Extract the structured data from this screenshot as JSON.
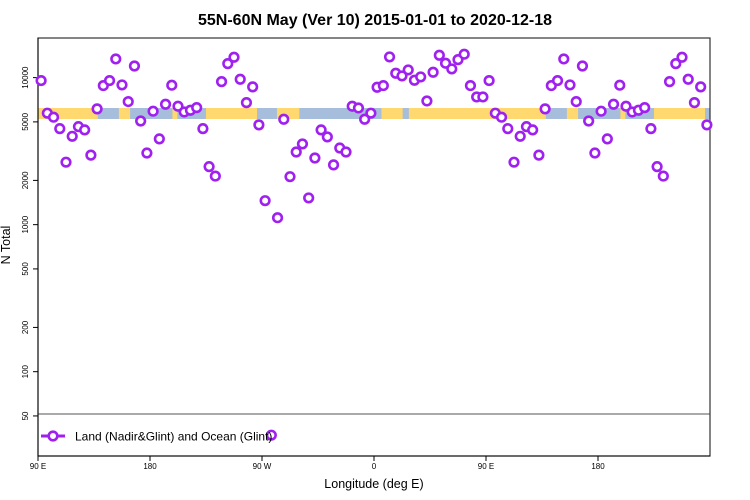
{
  "chart_data": {
    "type": "scatter",
    "title": "55N-60N May (Ver 10)   2015-01-01 to 2020-12-18",
    "xlabel": "Longitude (deg E)",
    "ylabel": "N Total",
    "y_scale": "log",
    "ylim": [
      26.7,
      18600
    ],
    "x_range_description_lon": [
      90,
      180
    ],
    "x_ticks": [
      {
        "lon": 90,
        "label": "90 E"
      },
      {
        "lon": 180,
        "label": "180"
      },
      {
        "lon": -90,
        "label": "90 W"
      },
      {
        "lon": 0,
        "label": "0"
      },
      {
        "lon": 90,
        "label": "90 E"
      },
      {
        "lon": 180,
        "label": "180"
      }
    ],
    "y_ticks": [
      50,
      100,
      200,
      500,
      1000,
      2000,
      5000,
      10000
    ],
    "y_tick_labels": [
      "50",
      "100",
      "200",
      "500",
      "1000",
      "2000",
      "5000",
      "10000"
    ],
    "reference_line_y": 50,
    "grid": false,
    "legend": {
      "position": "bottom-left",
      "label": "Land (Nadir&Glint) and Ocean (Glint)"
    },
    "colors": {
      "series": "#A020F0",
      "land": "#FFD86F",
      "ocean": "#A6BDDB"
    },
    "series": [
      {
        "name": "Land (Nadir&Glint) and Ocean (Glint)",
        "points": [
          {
            "lon": 92.5,
            "n": 9550
          },
          {
            "lon": 97.5,
            "n": 5730
          },
          {
            "lon": 102.5,
            "n": 5380
          },
          {
            "lon": 107.5,
            "n": 4500
          },
          {
            "lon": 112.5,
            "n": 2660
          },
          {
            "lon": 117.5,
            "n": 3990
          },
          {
            "lon": 122.5,
            "n": 4640
          },
          {
            "lon": 127.5,
            "n": 4410
          },
          {
            "lon": 132.5,
            "n": 2970
          },
          {
            "lon": 137.5,
            "n": 6130
          },
          {
            "lon": 142.5,
            "n": 8830
          },
          {
            "lon": 147.5,
            "n": 9550
          },
          {
            "lon": 152.5,
            "n": 13400
          },
          {
            "lon": 157.5,
            "n": 8920
          },
          {
            "lon": 162.5,
            "n": 6870
          },
          {
            "lon": 167.5,
            "n": 12000
          },
          {
            "lon": 172.5,
            "n": 5070
          },
          {
            "lon": 177.5,
            "n": 3070
          },
          {
            "lon": -177.5,
            "n": 5910
          },
          {
            "lon": -172.5,
            "n": 3830
          },
          {
            "lon": -167.5,
            "n": 6590
          },
          {
            "lon": -162.5,
            "n": 8880
          },
          {
            "lon": -157.5,
            "n": 6390
          },
          {
            "lon": -152.5,
            "n": 5840
          },
          {
            "lon": -147.5,
            "n": 6000
          },
          {
            "lon": -142.5,
            "n": 6250
          },
          {
            "lon": -137.5,
            "n": 4500
          },
          {
            "lon": -132.5,
            "n": 2480
          },
          {
            "lon": -127.5,
            "n": 2140
          },
          {
            "lon": -122.5,
            "n": 9390
          },
          {
            "lon": -117.5,
            "n": 12450
          },
          {
            "lon": -112.5,
            "n": 13760
          },
          {
            "lon": -107.5,
            "n": 9750
          },
          {
            "lon": -102.5,
            "n": 6760
          },
          {
            "lon": -97.5,
            "n": 8650
          },
          {
            "lon": -92.5,
            "n": 4770
          },
          {
            "lon": -87.5,
            "n": 1456
          },
          {
            "lon": -82.5,
            "n": 37
          },
          {
            "lon": -77.5,
            "n": 1115
          },
          {
            "lon": -72.5,
            "n": 5210
          },
          {
            "lon": -67.5,
            "n": 2120
          },
          {
            "lon": -62.5,
            "n": 3120
          },
          {
            "lon": -57.5,
            "n": 3540
          },
          {
            "lon": -52.5,
            "n": 1520
          },
          {
            "lon": -47.5,
            "n": 2840
          },
          {
            "lon": -42.5,
            "n": 4410
          },
          {
            "lon": -37.5,
            "n": 3950
          },
          {
            "lon": -32.5,
            "n": 2550
          },
          {
            "lon": -27.5,
            "n": 3320
          },
          {
            "lon": -22.5,
            "n": 3120
          },
          {
            "lon": -17.5,
            "n": 6390
          },
          {
            "lon": -12.5,
            "n": 6220
          },
          {
            "lon": -7.5,
            "n": 5210
          },
          {
            "lon": -2.5,
            "n": 5730
          },
          {
            "lon": 2.5,
            "n": 8600
          },
          {
            "lon": 7.5,
            "n": 8830
          },
          {
            "lon": 12.5,
            "n": 13830
          },
          {
            "lon": 17.5,
            "n": 10710
          },
          {
            "lon": 22.5,
            "n": 10270
          },
          {
            "lon": 27.5,
            "n": 11280
          },
          {
            "lon": 32.5,
            "n": 9600
          },
          {
            "lon": 37.5,
            "n": 10110
          },
          {
            "lon": 42.5,
            "n": 6940
          },
          {
            "lon": 47.5,
            "n": 10880
          },
          {
            "lon": 52.5,
            "n": 14200
          },
          {
            "lon": 57.5,
            "n": 12530
          },
          {
            "lon": 62.5,
            "n": 11460
          },
          {
            "lon": 67.5,
            "n": 13260
          },
          {
            "lon": 72.5,
            "n": 14430
          },
          {
            "lon": 77.5,
            "n": 8830
          },
          {
            "lon": 82.5,
            "n": 7390
          },
          {
            "lon": 87.5,
            "n": 7390
          }
        ]
      }
    ],
    "land_ocean_strip": {
      "ocean_lon_ranges": [
        [
          138,
          180
        ],
        [
          -180,
          -135
        ],
        [
          -94,
          -78
        ],
        [
          -60,
          0
        ],
        [
          0,
          28
        ]
      ],
      "land_lon_ranges_within_ocean": [
        [
          155,
          164
        ],
        [
          -162,
          -158
        ],
        [
          6,
          23
        ]
      ]
    }
  }
}
